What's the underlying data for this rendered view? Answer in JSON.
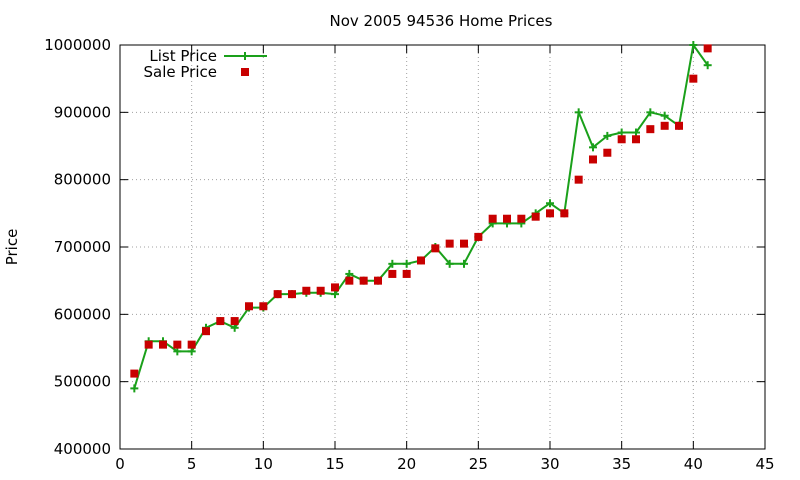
{
  "chart_data": {
    "type": "line",
    "title": "Nov 2005 94536 Home Prices",
    "xlabel": "",
    "ylabel": "Price",
    "xlim": [
      0,
      45
    ],
    "ylim": [
      400000,
      1000000
    ],
    "x_ticks": [
      0,
      5,
      10,
      15,
      20,
      25,
      30,
      35,
      40,
      45
    ],
    "y_ticks": [
      400000,
      500000,
      600000,
      700000,
      800000,
      900000,
      1000000
    ],
    "x_tick_labels": [
      "0",
      "5",
      "10",
      "15",
      "20",
      "25",
      "30",
      "35",
      "40",
      "45"
    ],
    "y_tick_labels": [
      "400000",
      "500000",
      "600000",
      "700000",
      "800000",
      "900000",
      "1000000"
    ],
    "grid": true,
    "legend_position": "top-left",
    "series": [
      {
        "name": "List Price",
        "style": "line-with-plus-markers",
        "color": "#1aa01a",
        "x": [
          1,
          2,
          3,
          4,
          5,
          6,
          7,
          8,
          9,
          10,
          11,
          12,
          13,
          14,
          15,
          16,
          17,
          18,
          19,
          20,
          21,
          22,
          23,
          24,
          25,
          26,
          27,
          28,
          29,
          30,
          31,
          32,
          33,
          34,
          35,
          36,
          37,
          38,
          39,
          40,
          41
        ],
        "values": [
          490000,
          560000,
          560000,
          545000,
          545000,
          580000,
          590000,
          580000,
          610000,
          610000,
          630000,
          630000,
          632000,
          632000,
          630000,
          660000,
          650000,
          650000,
          675000,
          675000,
          680000,
          700000,
          675000,
          675000,
          715000,
          735000,
          735000,
          735000,
          750000,
          765000,
          750000,
          900000,
          848000,
          865000,
          870000,
          870000,
          900000,
          895000,
          880000,
          1000000,
          970000
        ]
      },
      {
        "name": "Sale Price",
        "style": "square-markers",
        "color": "#c80000",
        "x": [
          1,
          2,
          3,
          4,
          5,
          6,
          7,
          8,
          9,
          10,
          11,
          12,
          13,
          14,
          15,
          16,
          17,
          18,
          19,
          20,
          21,
          22,
          23,
          24,
          25,
          26,
          27,
          28,
          29,
          30,
          31,
          32,
          33,
          34,
          35,
          36,
          37,
          38,
          39,
          40,
          41
        ],
        "values": [
          512000,
          555000,
          555000,
          555000,
          555000,
          575000,
          590000,
          590000,
          612000,
          612000,
          630000,
          630000,
          635000,
          635000,
          640000,
          650000,
          650000,
          650000,
          660000,
          660000,
          680000,
          698000,
          705000,
          705000,
          715000,
          742000,
          742000,
          742000,
          745000,
          750000,
          750000,
          800000,
          830000,
          840000,
          860000,
          860000,
          875000,
          880000,
          880000,
          950000,
          995000
        ]
      }
    ]
  }
}
